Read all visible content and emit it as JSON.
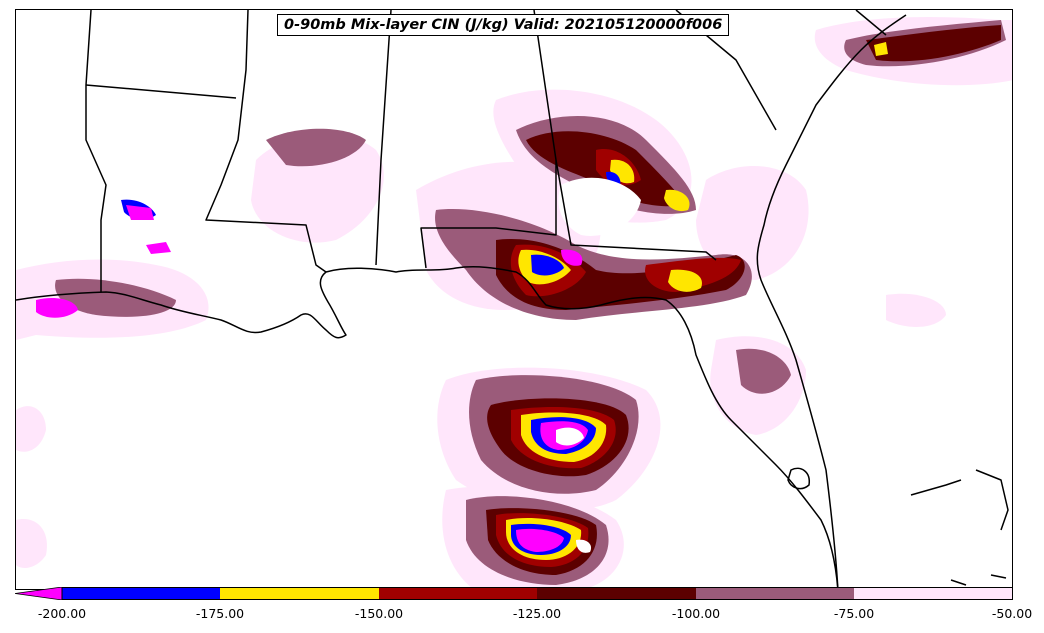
{
  "title": "0-90mb Mix-layer CIN (J/kg) Valid: 202105120000f006",
  "colorbar": {
    "ticks": [
      "-200.00",
      "-175.00",
      "-150.00",
      "-125.00",
      "-100.00",
      "-75.00",
      "-50.00"
    ],
    "bins": [
      {
        "range": "< -200",
        "color": "#ff00ff"
      },
      {
        "range": "-200 to -175",
        "color": "#0000ff"
      },
      {
        "range": "-175 to -150",
        "color": "#ffe600"
      },
      {
        "range": "-150 to -125",
        "color": "#a00000"
      },
      {
        "range": "-125 to -100",
        "color": "#5c0000"
      },
      {
        "range": "-100 to -75",
        "color": "#9b5b7a"
      },
      {
        "range": "-75 to -50",
        "color": "#ffe6fb"
      }
    ]
  },
  "map": {
    "region": "US Gulf Coast and Florida",
    "boundary_color": "#000000"
  }
}
